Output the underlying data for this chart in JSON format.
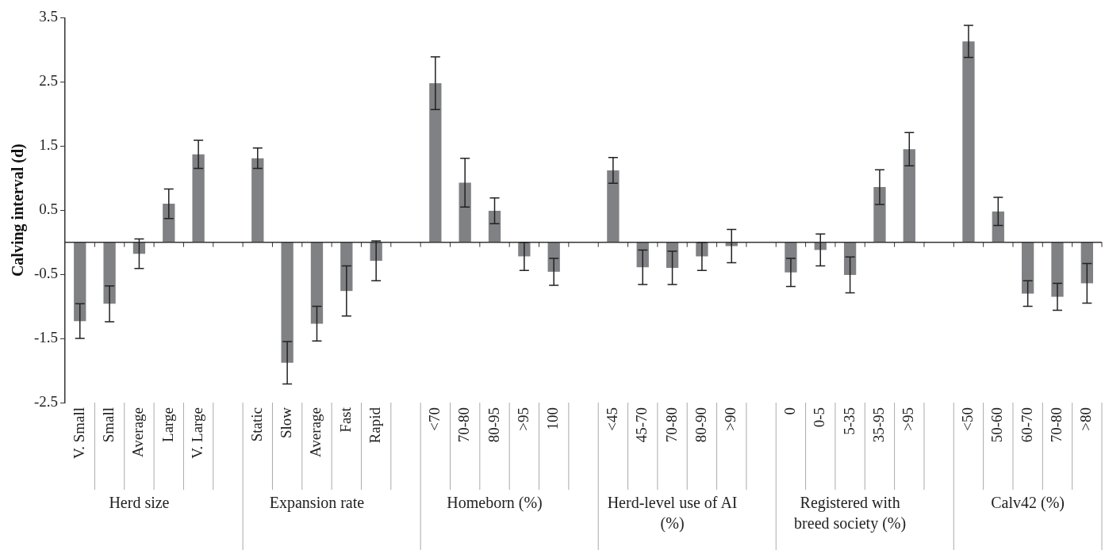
{
  "chart_data": {
    "type": "bar",
    "ylabel": "Calving interval (d)",
    "categories": [
      "V. Small",
      "Small",
      "Average",
      "Large",
      "V. Large",
      null,
      "Static",
      "Slow",
      "Average",
      "Fast",
      "Rapid",
      null,
      "<70",
      "70-80",
      "80-95",
      ">95",
      "100",
      null,
      "<45",
      "45-70",
      "70-80",
      "80-90",
      ">90",
      null,
      "0",
      "0-5",
      "5-35",
      "35-95",
      ">95",
      null,
      "<50",
      "50-60",
      "60-70",
      "70-80",
      ">80"
    ],
    "values": [
      -1.23,
      -0.96,
      -0.18,
      0.6,
      1.37,
      null,
      1.31,
      -1.88,
      -1.27,
      -0.76,
      -0.29,
      null,
      2.48,
      0.93,
      0.49,
      -0.22,
      -0.46,
      null,
      1.12,
      -0.39,
      -0.4,
      -0.22,
      -0.06,
      null,
      -0.47,
      -0.12,
      -0.51,
      0.86,
      1.45,
      null,
      3.13,
      0.48,
      -0.8,
      -0.85,
      -0.64
    ],
    "errors": [
      0.27,
      0.28,
      0.23,
      0.23,
      0.22,
      null,
      0.16,
      0.33,
      0.27,
      0.39,
      0.31,
      null,
      0.41,
      0.38,
      0.2,
      0.22,
      0.21,
      null,
      0.2,
      0.27,
      0.26,
      0.22,
      0.26,
      null,
      0.22,
      0.25,
      0.28,
      0.27,
      0.26,
      null,
      0.25,
      0.22,
      0.2,
      0.21,
      0.31
    ],
    "color": "#808184",
    "ylim": [
      -2.5,
      3.5
    ],
    "yticks": [
      -2.5,
      -1.5,
      -0.5,
      0.5,
      1.5,
      2.5,
      3.5
    ],
    "annotations": [
      "Herd size",
      "Expansion rate",
      "Homeborn (%)",
      "Herd-level use of AI (%)",
      "Registered with breed society (%)",
      "Calv42 (%)"
    ]
  }
}
